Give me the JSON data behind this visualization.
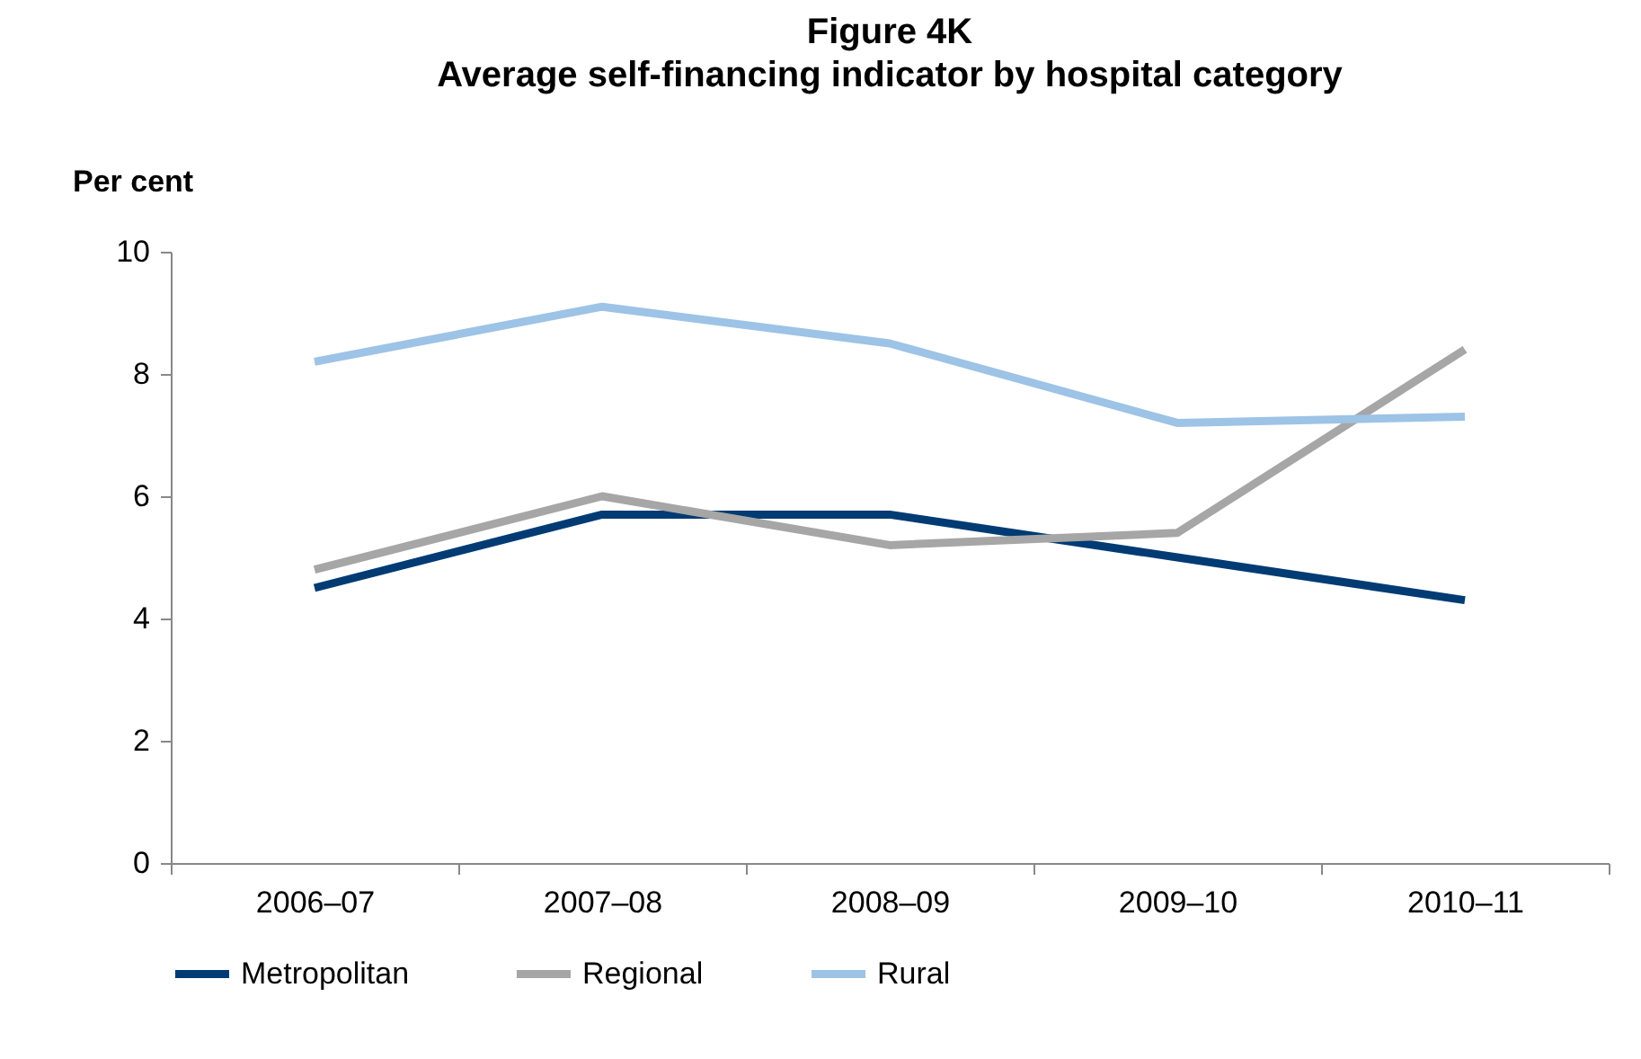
{
  "chart_data": {
    "type": "line",
    "title": "Figure 4K",
    "subtitle": "Average self-financing indicator by hospital category",
    "ylabel": "Per cent",
    "categories": [
      "2006–07",
      "2007–08",
      "2008–09",
      "2009–10",
      "2010–11"
    ],
    "series": [
      {
        "name": "Metropolitan",
        "color": "#003b73",
        "values": [
          4.5,
          5.7,
          5.7,
          5.0,
          4.3
        ]
      },
      {
        "name": "Regional",
        "color": "#a6a6a6",
        "values": [
          4.8,
          6.0,
          5.2,
          5.4,
          8.4
        ]
      },
      {
        "name": "Rural",
        "color": "#9dc3e6",
        "values": [
          8.2,
          9.1,
          8.5,
          7.2,
          7.3
        ]
      }
    ],
    "ylim": [
      0,
      10
    ],
    "yticks": [
      0,
      2,
      4,
      6,
      8,
      10
    ],
    "grid": false,
    "legend": "bottom",
    "marker": "none",
    "line_style": "solid"
  }
}
